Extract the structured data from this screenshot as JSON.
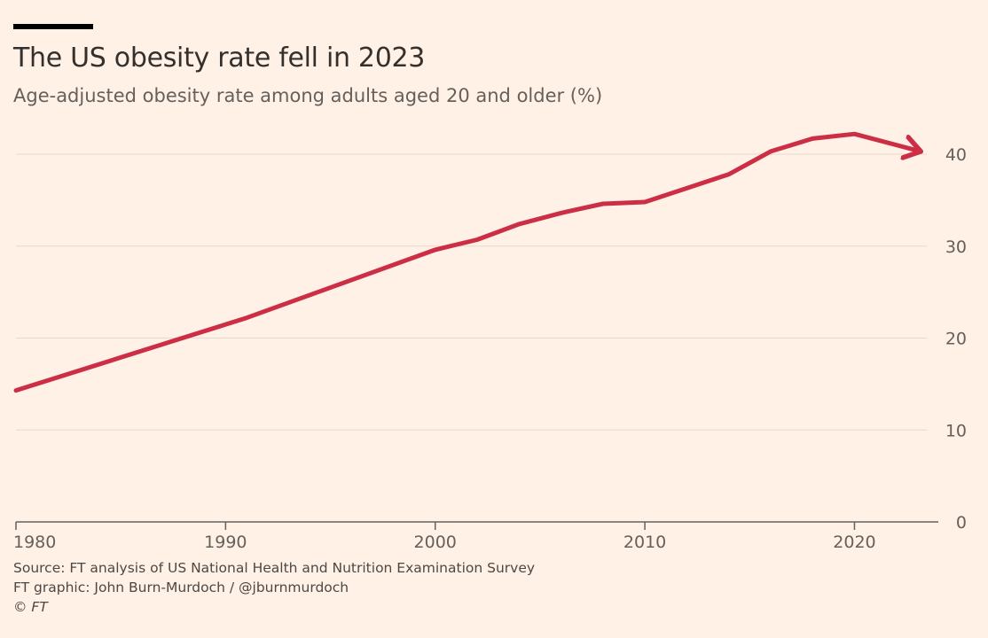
{
  "title": "The US obesity rate fell in 2023",
  "subtitle": "Age-adjusted obesity rate among adults aged 20 and older (%)",
  "footer": {
    "source": "Source: FT analysis of US National Health and Nutrition Examination Survey",
    "graphic": "FT graphic: John Burn-Murdoch / @jburnmurdoch",
    "copyright": "© FT"
  },
  "colors": {
    "background": "#fff1e5",
    "line": "#cc2f45",
    "grid": "#e6d9ce",
    "axis": "#66605c",
    "text": "#66605c"
  },
  "chart_data": {
    "type": "line",
    "title": "The US obesity rate fell in 2023",
    "xlabel": "",
    "ylabel": "Age-adjusted obesity rate among adults aged 20 and older (%)",
    "xlim": [
      1980,
      2024
    ],
    "ylim": [
      0,
      43
    ],
    "x_ticks": [
      1980,
      1990,
      2000,
      2010,
      2020
    ],
    "x_tick_labels": [
      "1980",
      "1990",
      "2000",
      "2010",
      "2020"
    ],
    "y_ticks": [
      0,
      10,
      20,
      30,
      40
    ],
    "y_tick_labels": [
      "0",
      "10",
      "20",
      "30",
      "40"
    ],
    "y_axis_position": "right",
    "grid": true,
    "series": [
      {
        "name": "Obesity rate",
        "x": [
          1980,
          1991,
          2000,
          2002,
          2004,
          2006,
          2008,
          2010,
          2012,
          2014,
          2016,
          2018,
          2020,
          2023
        ],
        "values": [
          14.3,
          22.2,
          29.6,
          30.7,
          32.4,
          33.6,
          34.6,
          34.8,
          36.3,
          37.8,
          40.3,
          41.7,
          42.2,
          40.4
        ]
      }
    ]
  }
}
